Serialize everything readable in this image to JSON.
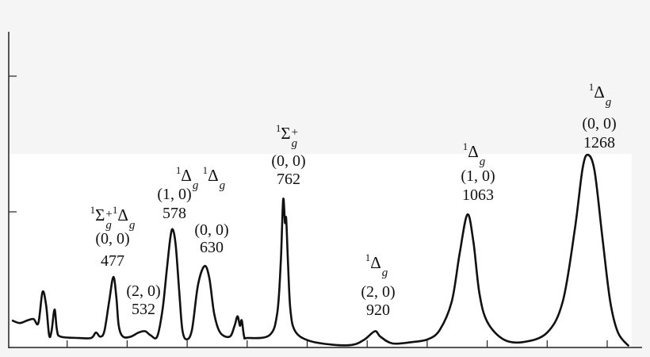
{
  "colors": {
    "background": "#f5f5f5",
    "plot_area": "#ffffff",
    "line": "#111111"
  },
  "chart_data": {
    "type": "line",
    "title": "",
    "xlabel": "",
    "ylabel": "",
    "xlim": [
      300,
      1360
    ],
    "ylim": [
      0,
      2.3
    ],
    "x_ticks": [
      400,
      500,
      600,
      700,
      800,
      900,
      1000,
      1100,
      1200,
      1300
    ],
    "y_ticks": [
      1,
      2
    ],
    "tick_labels_shown": false,
    "grid": false,
    "series": [
      {
        "points": [
          [
            308,
            0.2
          ],
          [
            321,
            0.18
          ],
          [
            334,
            0.2
          ],
          [
            344,
            0.21
          ],
          [
            352,
            0.18
          ],
          [
            359,
            0.41
          ],
          [
            365,
            0.31
          ],
          [
            370,
            0.09
          ],
          [
            374,
            0.12
          ],
          [
            379,
            0.28
          ],
          [
            383,
            0.13
          ],
          [
            389,
            0.08
          ],
          [
            420,
            0.07
          ],
          [
            440,
            0.07
          ],
          [
            448,
            0.11
          ],
          [
            455,
            0.08
          ],
          [
            462,
            0.12
          ],
          [
            470,
            0.34
          ],
          [
            477,
            0.52
          ],
          [
            482,
            0.37
          ],
          [
            486,
            0.16
          ],
          [
            493,
            0.08
          ],
          [
            506,
            0.08
          ],
          [
            519,
            0.11
          ],
          [
            530,
            0.12
          ],
          [
            539,
            0.09
          ],
          [
            550,
            0.08
          ],
          [
            559,
            0.28
          ],
          [
            566,
            0.57
          ],
          [
            572,
            0.81
          ],
          [
            576,
            0.87
          ],
          [
            581,
            0.75
          ],
          [
            587,
            0.4
          ],
          [
            592,
            0.13
          ],
          [
            599,
            0.06
          ],
          [
            608,
            0.13
          ],
          [
            618,
            0.46
          ],
          [
            629,
            0.6
          ],
          [
            637,
            0.51
          ],
          [
            645,
            0.25
          ],
          [
            655,
            0.11
          ],
          [
            671,
            0.08
          ],
          [
            679,
            0.16
          ],
          [
            684,
            0.23
          ],
          [
            688,
            0.16
          ],
          [
            691,
            0.2
          ],
          [
            695,
            0.08
          ],
          [
            700,
            0.07
          ],
          [
            737,
            0.09
          ],
          [
            750,
            0.25
          ],
          [
            756,
            0.63
          ],
          [
            760,
            1.09
          ],
          [
            763,
            0.92
          ],
          [
            765,
            0.95
          ],
          [
            768,
            0.63
          ],
          [
            772,
            0.28
          ],
          [
            780,
            0.12
          ],
          [
            803,
            0.05
          ],
          [
            843,
            0.02
          ],
          [
            876,
            0.02
          ],
          [
            896,
            0.06
          ],
          [
            913,
            0.12
          ],
          [
            922,
            0.08
          ],
          [
            942,
            0.03
          ],
          [
            975,
            0.04
          ],
          [
            1001,
            0.06
          ],
          [
            1021,
            0.13
          ],
          [
            1041,
            0.34
          ],
          [
            1054,
            0.69
          ],
          [
            1067,
            0.98
          ],
          [
            1077,
            0.78
          ],
          [
            1087,
            0.4
          ],
          [
            1100,
            0.19
          ],
          [
            1127,
            0.06
          ],
          [
            1160,
            0.04
          ],
          [
            1200,
            0.11
          ],
          [
            1226,
            0.34
          ],
          [
            1246,
            0.87
          ],
          [
            1259,
            1.32
          ],
          [
            1268,
            1.42
          ],
          [
            1279,
            1.3
          ],
          [
            1292,
            0.81
          ],
          [
            1305,
            0.34
          ],
          [
            1318,
            0.11
          ],
          [
            1336,
            0.01
          ]
        ]
      }
    ],
    "annotations": [
      {
        "term": [
          {
            "mult": "1",
            "sym": "Σ",
            "sub": "g",
            "sup": "+"
          },
          {
            "mult": "1",
            "sym": "Δ",
            "sub": "g"
          }
        ],
        "band": "(0, 0)",
        "wavelength": "477"
      },
      {
        "band": "(2, 0)",
        "wavelength": "532"
      },
      {
        "term": [
          {
            "mult": "1",
            "sym": "Δ",
            "sub": "g"
          },
          {
            "mult": "1",
            "sym": "Δ",
            "sub": "g"
          }
        ],
        "band": "(1, 0)",
        "wavelength": "578"
      },
      {
        "band": "(0, 0)",
        "wavelength": "630"
      },
      {
        "term": [
          {
            "mult": "1",
            "sym": "Σ",
            "sub": "g",
            "sup": "+"
          }
        ],
        "band": "(0, 0)",
        "wavelength": "762"
      },
      {
        "term": [
          {
            "mult": "1",
            "sym": "Δ",
            "sub": "g"
          }
        ],
        "band": "(2, 0)",
        "wavelength": "920"
      },
      {
        "term": [
          {
            "mult": "1",
            "sym": "Δ",
            "sub": "g"
          }
        ],
        "band": "(1, 0)",
        "wavelength": "1063"
      },
      {
        "term": [
          {
            "mult": "1",
            "sym": "Δ",
            "sub": "g"
          }
        ],
        "band": "(0, 0)",
        "wavelength": "1268"
      }
    ]
  }
}
